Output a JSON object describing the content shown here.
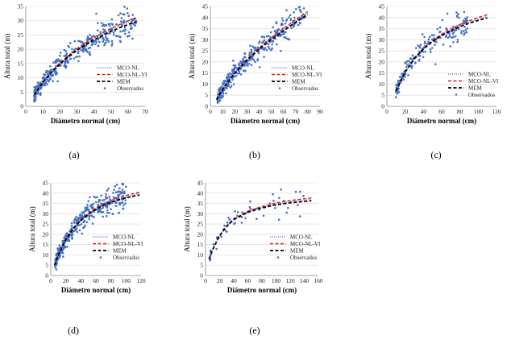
{
  "chart_data": [
    {
      "id": "a",
      "panel_label": "(a)",
      "type": "scatter",
      "xlabel": "Diámetro normal (cm)",
      "ylabel": "Altura total (m)",
      "xlim": [
        0,
        70
      ],
      "ylim": [
        0,
        35
      ],
      "xticks": [
        0,
        10,
        20,
        30,
        40,
        50,
        60,
        70
      ],
      "yticks": [
        0,
        5,
        10,
        15,
        20,
        25,
        30,
        35
      ],
      "legend_position": "bottom-right",
      "series": [
        {
          "name": "MCO-NL",
          "style": "dotted",
          "color": "#4472c4"
        },
        {
          "name": "MCO-NL-VI",
          "style": "dashed",
          "color": "#e8191a"
        },
        {
          "name": "MEM",
          "style": "dashed",
          "color": "#000000"
        },
        {
          "name": "Observados",
          "style": "markers",
          "color": "#4472c4"
        }
      ],
      "fit": {
        "x": [
          5,
          10,
          15,
          20,
          25,
          30,
          35,
          40,
          45,
          50,
          55,
          60,
          65
        ],
        "y": [
          4.0,
          8.5,
          12.0,
          15.0,
          17.6,
          19.9,
          21.9,
          23.7,
          25.3,
          26.8,
          28.1,
          29.3,
          30.4
        ]
      },
      "observations": {
        "x_range": [
          5,
          65
        ],
        "n": 360,
        "spread": 2.8
      }
    },
    {
      "id": "b",
      "panel_label": "(b)",
      "type": "scatter",
      "xlabel": "Diámetro normal (cm)",
      "ylabel": "Altura total (m)",
      "xlim": [
        0,
        90
      ],
      "ylim": [
        0,
        45
      ],
      "xticks": [
        0,
        10,
        20,
        30,
        40,
        50,
        60,
        70,
        80,
        90
      ],
      "yticks": [
        0,
        5,
        10,
        15,
        20,
        25,
        30,
        35,
        40,
        45
      ],
      "legend_position": "bottom-right",
      "series": [
        {
          "name": "MCO-NL",
          "style": "dotted",
          "color": "#4472c4"
        },
        {
          "name": "MCO-NL-VI",
          "style": "dashed",
          "color": "#e8191a"
        },
        {
          "name": "MEM",
          "style": "dashed",
          "color": "#000000"
        },
        {
          "name": "Observados",
          "style": "markers",
          "color": "#4472c4"
        }
      ],
      "fit": {
        "x": [
          5,
          10,
          15,
          20,
          30,
          40,
          50,
          60,
          70,
          80
        ],
        "y": [
          3.0,
          7.5,
          11.5,
          15.0,
          21.0,
          26.0,
          30.5,
          34.5,
          38.5,
          42.0
        ]
      },
      "observations": {
        "x_range": [
          6,
          78
        ],
        "n": 330,
        "spread": 3.6
      }
    },
    {
      "id": "c",
      "panel_label": "(c)",
      "type": "scatter",
      "xlabel": "Diámetro normal (cm)",
      "ylabel": "Altura total (m)",
      "xlim": [
        0,
        120
      ],
      "ylim": [
        0,
        45
      ],
      "xticks": [
        0,
        20,
        40,
        60,
        80,
        100,
        120
      ],
      "yticks": [
        0,
        5,
        10,
        15,
        20,
        25,
        30,
        35,
        40,
        45
      ],
      "legend_position": "top-right",
      "series": [
        {
          "name": "MCO-NL",
          "style": "dotted",
          "color": "#4472c4"
        },
        {
          "name": "MCO-NL-VI",
          "style": "dashed",
          "color": "#e8191a"
        },
        {
          "name": "MEM",
          "style": "dashed",
          "color": "#000000"
        },
        {
          "name": "Observados",
          "style": "markers",
          "color": "#4472c4"
        }
      ],
      "fit": {
        "x": [
          10,
          20,
          30,
          40,
          50,
          60,
          70,
          80,
          90,
          100,
          110
        ],
        "y": [
          7.0,
          15.5,
          21.5,
          26.0,
          29.5,
          32.2,
          34.5,
          36.4,
          38.0,
          39.4,
          40.6
        ]
      },
      "observations": {
        "x_range": [
          10,
          90
        ],
        "n": 180,
        "spread": 3.8
      }
    },
    {
      "id": "d",
      "panel_label": "(d)",
      "type": "scatter",
      "xlabel": "Diámetro normal (cm)",
      "ylabel": "Altura total (m)",
      "xlim": [
        0,
        120
      ],
      "ylim": [
        0,
        45
      ],
      "xticks": [
        0,
        20,
        40,
        60,
        80,
        100,
        120
      ],
      "yticks": [
        0,
        5,
        10,
        15,
        20,
        25,
        30,
        35,
        40,
        45
      ],
      "legend_position": "bottom-right",
      "series": [
        {
          "name": "MCO-NL",
          "style": "dotted",
          "color": "#4472c4"
        },
        {
          "name": "MCO-NL-VI",
          "style": "dashed",
          "color": "#e8191a"
        },
        {
          "name": "MEM",
          "style": "dashed",
          "color": "#000000"
        },
        {
          "name": "Observados",
          "style": "markers",
          "color": "#4472c4"
        }
      ],
      "fit": {
        "x": [
          5,
          10,
          20,
          30,
          40,
          50,
          60,
          70,
          80,
          90,
          100,
          110,
          118
        ],
        "y": [
          5.0,
          10.0,
          17.5,
          23.0,
          27.0,
          30.0,
          32.5,
          34.5,
          36.0,
          37.2,
          38.3,
          39.2,
          39.8
        ]
      },
      "observations": {
        "x_range": [
          6,
          100
        ],
        "n": 340,
        "spread": 3.8
      }
    },
    {
      "id": "e",
      "panel_label": "(e)",
      "type": "scatter",
      "xlabel": "Diámetro normal (cm)",
      "ylabel": "Altura total (m)",
      "xlim": [
        0,
        160
      ],
      "ylim": [
        0,
        45
      ],
      "xticks": [
        0,
        20,
        40,
        60,
        80,
        100,
        120,
        140,
        160
      ],
      "yticks": [
        0,
        5,
        10,
        15,
        20,
        25,
        30,
        35,
        40,
        45
      ],
      "legend_position": "bottom-right",
      "series": [
        {
          "name": "MCO-NL",
          "style": "dotted",
          "color": "#4472c4"
        },
        {
          "name": "MCO-NL-VI",
          "style": "dashed",
          "color": "#e8191a"
        },
        {
          "name": "MEM",
          "style": "dashed",
          "color": "#000000"
        },
        {
          "name": "Observados",
          "style": "markers",
          "color": "#4472c4"
        }
      ],
      "fit": {
        "x": [
          5,
          10,
          20,
          30,
          40,
          60,
          80,
          100,
          120,
          150
        ],
        "y": [
          8.0,
          12.5,
          19.5,
          24.0,
          27.3,
          31.0,
          33.2,
          34.8,
          35.9,
          37.0
        ]
      },
      "observations": {
        "x_range": [
          6,
          145
        ],
        "n": 55,
        "spread": 3.6
      }
    }
  ]
}
